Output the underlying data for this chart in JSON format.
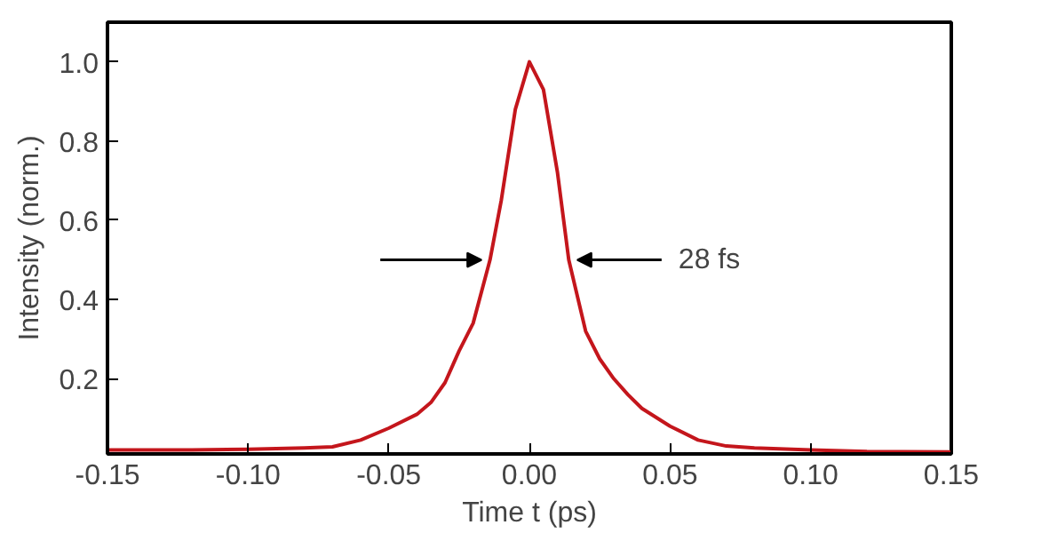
{
  "chart_data": {
    "type": "line",
    "xlabel": "Time t (ps)",
    "ylabel": "Intensity (norm.)",
    "x": [
      -0.15,
      -0.12,
      -0.1,
      -0.08,
      -0.07,
      -0.06,
      -0.05,
      -0.04,
      -0.035,
      -0.03,
      -0.025,
      -0.02,
      -0.014,
      -0.01,
      -0.005,
      0.0,
      0.005,
      0.01,
      0.014,
      0.02,
      0.025,
      0.03,
      0.035,
      0.04,
      0.05,
      0.06,
      0.07,
      0.08,
      0.1,
      0.12,
      0.15
    ],
    "series": [
      {
        "color": "#c4161c",
        "values": [
          0.02,
          0.02,
          0.022,
          0.025,
          0.028,
          0.045,
          0.075,
          0.11,
          0.14,
          0.19,
          0.27,
          0.34,
          0.5,
          0.65,
          0.88,
          1.0,
          0.93,
          0.72,
          0.5,
          0.32,
          0.25,
          0.2,
          0.16,
          0.125,
          0.08,
          0.045,
          0.03,
          0.025,
          0.02,
          0.016,
          0.015
        ]
      }
    ],
    "annotations": [
      {
        "text": "28 fs",
        "x": 0.014,
        "y": 0.5
      }
    ],
    "xlim": [
      -0.15,
      0.15
    ],
    "ylim": [
      0.01,
      1.1
    ],
    "xticks": [
      {
        "value": -0.15,
        "label": "-0.15"
      },
      {
        "value": -0.1,
        "label": "-0.10"
      },
      {
        "value": -0.05,
        "label": "-0.05"
      },
      {
        "value": 0,
        "label": "0.00"
      },
      {
        "value": 0.05,
        "label": "0.05"
      },
      {
        "value": 0.1,
        "label": "0.10"
      },
      {
        "value": 0.15,
        "label": "0.15"
      }
    ],
    "yticks": [
      0.2,
      0.4,
      0.6,
      0.8,
      {
        "value": 1.0,
        "label": "1.0"
      }
    ],
    "grid": false
  }
}
